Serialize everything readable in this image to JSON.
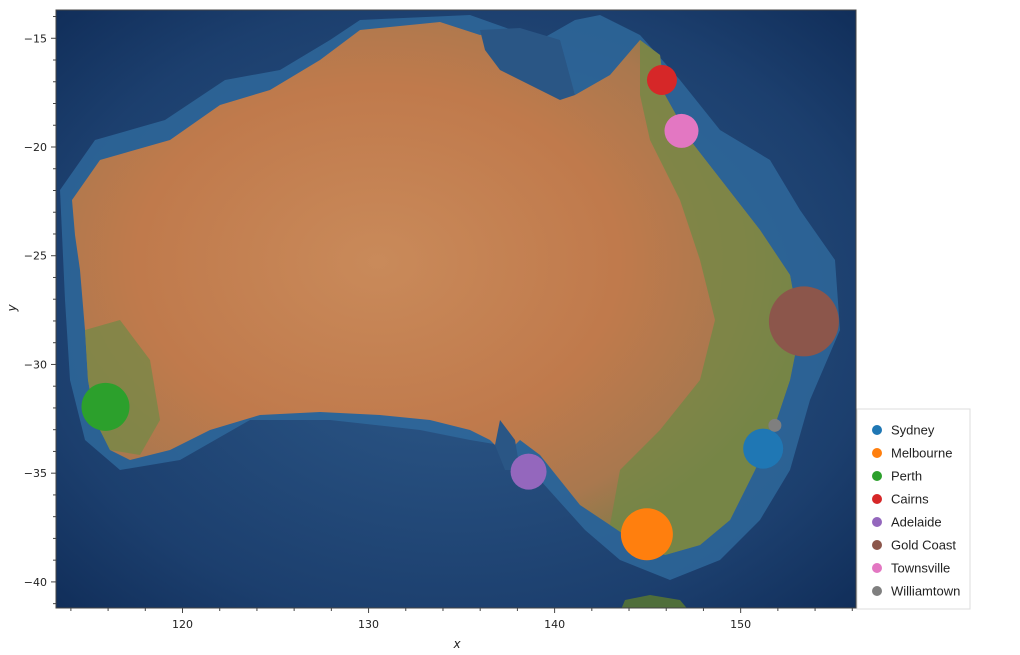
{
  "chart_data": {
    "type": "scatter",
    "title": "",
    "xlabel": "x",
    "ylabel": "y",
    "xlim": [
      113.2,
      156.2
    ],
    "ylim": [
      -41.2,
      -13.7
    ],
    "x_ticks": [
      120,
      130,
      140,
      150
    ],
    "y_ticks": [
      -15,
      -20,
      -25,
      -30,
      -35,
      -40
    ],
    "x_tick_labels": [
      "120",
      "130",
      "140",
      "150"
    ],
    "y_tick_labels": [
      "−15",
      "−20",
      "−25",
      "−30",
      "−35",
      "−40"
    ],
    "background": "satellite imagery of Australia",
    "grid": false,
    "legend_position": "bottom-right outside",
    "series": [
      {
        "name": "Sydney",
        "x": 151.21,
        "y": -33.87,
        "size": 40,
        "color": "#1f77b4"
      },
      {
        "name": "Melbourne",
        "x": 144.96,
        "y": -37.81,
        "size": 52,
        "color": "#ff7f0e"
      },
      {
        "name": "Perth",
        "x": 115.86,
        "y": -31.95,
        "size": 48,
        "color": "#2ca02c"
      },
      {
        "name": "Cairns",
        "x": 145.77,
        "y": -16.92,
        "size": 30,
        "color": "#d62728"
      },
      {
        "name": "Adelaide",
        "x": 138.6,
        "y": -34.93,
        "size": 36,
        "color": "#9467bd"
      },
      {
        "name": "Gold Coast",
        "x": 153.4,
        "y": -28.02,
        "size": 70,
        "color": "#8c564b"
      },
      {
        "name": "Townsville",
        "x": 146.82,
        "y": -19.26,
        "size": 34,
        "color": "#e377c2"
      },
      {
        "name": "Williamtown",
        "x": 151.84,
        "y": -32.8,
        "size": 13,
        "color": "#7f7f7f"
      }
    ]
  }
}
